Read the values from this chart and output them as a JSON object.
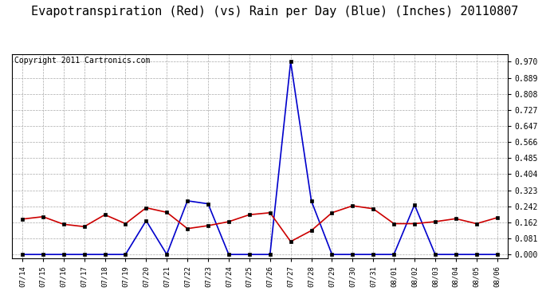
{
  "title": "Evapotranspiration (Red) (vs) Rain per Day (Blue) (Inches) 20110807",
  "copyright": "Copyright 2011 Cartronics.com",
  "dates": [
    "07/14",
    "07/15",
    "07/16",
    "07/17",
    "07/18",
    "07/19",
    "07/20",
    "07/21",
    "07/22",
    "07/23",
    "07/24",
    "07/25",
    "07/26",
    "07/27",
    "07/28",
    "07/29",
    "07/30",
    "07/31",
    "08/01",
    "08/02",
    "08/03",
    "08/04",
    "08/05",
    "08/06"
  ],
  "red_data": [
    0.178,
    0.19,
    0.152,
    0.14,
    0.2,
    0.155,
    0.235,
    0.212,
    0.13,
    0.145,
    0.165,
    0.2,
    0.21,
    0.065,
    0.12,
    0.21,
    0.245,
    0.23,
    0.155,
    0.155,
    0.165,
    0.18,
    0.155,
    0.185
  ],
  "blue_data": [
    0.0,
    0.0,
    0.0,
    0.0,
    0.0,
    0.0,
    0.17,
    0.0,
    0.27,
    0.255,
    0.0,
    0.0,
    0.0,
    0.97,
    0.27,
    0.0,
    0.0,
    0.0,
    0.0,
    0.25,
    0.0,
    0.0,
    0.0,
    0.0
  ],
  "yticks": [
    0.0,
    0.081,
    0.162,
    0.242,
    0.323,
    0.404,
    0.485,
    0.566,
    0.647,
    0.727,
    0.808,
    0.889,
    0.97
  ],
  "ymax": 1.01,
  "ymin": -0.02,
  "red_color": "#cc0000",
  "blue_color": "#0000cc",
  "bg_color": "#ffffff",
  "plot_bg": "#ffffff",
  "grid_color": "#aaaaaa",
  "title_fontsize": 11,
  "copyright_fontsize": 7
}
